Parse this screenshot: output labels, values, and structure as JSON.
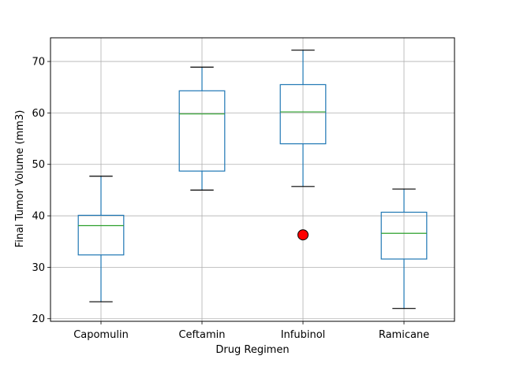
{
  "chart_data": {
    "type": "box",
    "title": "",
    "xlabel": "Drug Regimen",
    "ylabel": "Final Tumor Volume (mm3)",
    "ylim": [
      19.5,
      74.6
    ],
    "yticks": [
      20,
      30,
      40,
      50,
      60,
      70
    ],
    "grid": true,
    "categories": [
      "Capomulin",
      "Ceftamin",
      "Infubinol",
      "Ramicane"
    ],
    "boxes": [
      {
        "name": "Capomulin",
        "whisker_low": 23.3,
        "q1": 32.4,
        "median": 38.1,
        "q3": 40.1,
        "whisker_high": 47.7,
        "outliers": []
      },
      {
        "name": "Ceftamin",
        "whisker_low": 45.0,
        "q1": 48.7,
        "median": 59.8,
        "q3": 64.3,
        "whisker_high": 68.9,
        "outliers": []
      },
      {
        "name": "Infubinol",
        "whisker_low": 45.7,
        "q1": 54.0,
        "median": 60.2,
        "q3": 65.5,
        "whisker_high": 72.2,
        "outliers": [
          36.3
        ]
      },
      {
        "name": "Ramicane",
        "whisker_low": 22.0,
        "q1": 31.6,
        "median": 36.6,
        "q3": 40.7,
        "whisker_high": 45.2,
        "outliers": []
      }
    ],
    "colors": {
      "box": "#1f77b4",
      "median": "#2ca02c",
      "whisker": "#1f77b4",
      "cap": "#000000",
      "outlier_fill": "#ff0000",
      "outlier_edge": "#000000",
      "grid": "#b0b0b0"
    }
  }
}
